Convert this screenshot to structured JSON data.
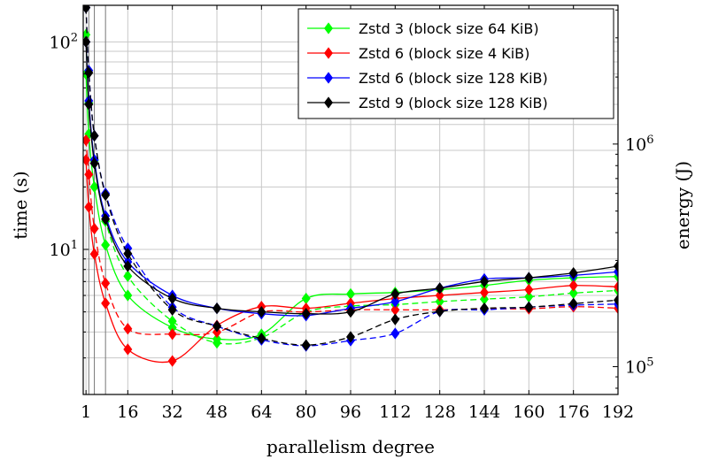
{
  "chart_data": {
    "type": "line",
    "title": "",
    "xlabel": "parallelism degree",
    "ylabel": "time (s)",
    "y2label": "energy (J)",
    "x_ticks": [
      1,
      16,
      32,
      48,
      64,
      80,
      96,
      112,
      128,
      144,
      160,
      176,
      192
    ],
    "xlim": [
      0,
      192
    ],
    "yscale": "log",
    "ylim": [
      2,
      150
    ],
    "y_ticks": [
      {
        "value": 10,
        "label": "10^1"
      },
      {
        "value": 100,
        "label": "10^2"
      }
    ],
    "y2scale": "log",
    "y2lim": [
      75000,
      4200000
    ],
    "y2_ticks": [
      {
        "value": 100000,
        "label": "10^5"
      },
      {
        "value": 1000000,
        "label": "10^6"
      }
    ],
    "grid": true,
    "legend_position": "top-right",
    "line_styles": {
      "time": "solid",
      "energy": "dashed"
    },
    "series": [
      {
        "name": "Zstd 3 (block size 64 KiB)",
        "color": "#00ff00",
        "x": [
          1,
          2,
          4,
          8,
          16,
          32,
          48,
          64,
          80,
          96,
          112,
          128,
          144,
          160,
          176,
          192
        ],
        "time": [
          70,
          36,
          20,
          10.5,
          6.0,
          4.2,
          3.7,
          3.9,
          5.8,
          6.1,
          6.2,
          6.4,
          6.7,
          7.1,
          7.3,
          7.4
        ],
        "energy": [
          3100000,
          1530000,
          840000,
          450000,
          255000,
          160000,
          128000,
          135000,
          176000,
          187000,
          190000,
          196000,
          201000,
          206000,
          214000,
          220000
        ]
      },
      {
        "name": "Zstd 6 (block size 4 KiB)",
        "color": "#ff0000",
        "x": [
          1,
          2,
          4,
          8,
          16,
          32,
          48,
          64,
          80,
          96,
          112,
          128,
          144,
          160,
          176,
          192
        ],
        "time": [
          27,
          16,
          9.5,
          5.5,
          3.3,
          2.9,
          4.3,
          5.3,
          5.2,
          5.5,
          5.8,
          6.0,
          6.2,
          6.4,
          6.7,
          6.6
        ],
        "energy": [
          1040000,
          730000,
          417000,
          237000,
          148000,
          140000,
          143000,
          176000,
          176000,
          180000,
          180000,
          180000,
          182000,
          182000,
          186000,
          183000
        ]
      },
      {
        "name": "Zstd 6 (block size 128 KiB)",
        "color": "#0000ff",
        "x": [
          1,
          2,
          4,
          8,
          16,
          32,
          48,
          64,
          80,
          96,
          112,
          128,
          144,
          160,
          176,
          192
        ],
        "time": [
          100,
          52,
          27,
          14.5,
          8.7,
          6.0,
          5.2,
          4.9,
          4.8,
          5.2,
          5.6,
          6.5,
          7.2,
          7.3,
          7.5,
          7.8
        ],
        "energy": [
          4100000,
          2140000,
          1090000,
          600000,
          340000,
          185000,
          152000,
          132000,
          124000,
          131000,
          141000,
          177000,
          180000,
          185000,
          189000,
          191000
        ]
      },
      {
        "name": "Zstd 9 (block size 128 KiB)",
        "color": "#000000",
        "x": [
          1,
          2,
          4,
          8,
          16,
          32,
          48,
          64,
          80,
          96,
          112,
          128,
          144,
          160,
          176,
          192
        ],
        "time": [
          100,
          50,
          26,
          14,
          8.3,
          5.8,
          5.2,
          5.0,
          4.9,
          5.0,
          6.1,
          6.5,
          7.0,
          7.3,
          7.7,
          8.3
        ],
        "energy": [
          4100000,
          2090000,
          1090000,
          590000,
          322000,
          180000,
          152000,
          134000,
          125000,
          136000,
          163000,
          177000,
          183000,
          185000,
          192000,
          199000
        ]
      }
    ]
  }
}
